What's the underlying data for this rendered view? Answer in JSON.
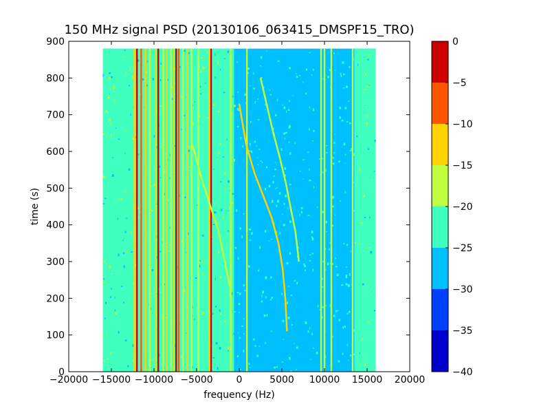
{
  "chart_data": {
    "type": "heatmap",
    "title": "150 MHz signal PSD (20130106_063415_DMSPF15_TRO)",
    "xlabel": "frequency (Hz)",
    "ylabel": "time (s)",
    "xlim": [
      -20000,
      20000
    ],
    "ylim": [
      0,
      900
    ],
    "xticks": [
      -20000,
      -15000,
      -10000,
      -5000,
      0,
      5000,
      10000,
      15000,
      20000
    ],
    "xtick_labels": [
      "−20000",
      "−15000",
      "−10000",
      "−5000",
      "0",
      "5000",
      "10000",
      "15000",
      "20000"
    ],
    "yticks": [
      0,
      100,
      200,
      300,
      400,
      500,
      600,
      700,
      800,
      900
    ],
    "ytick_labels": [
      "0",
      "100",
      "200",
      "300",
      "400",
      "500",
      "600",
      "700",
      "800",
      "900"
    ],
    "data_extent": {
      "x": [
        -16000,
        16000
      ],
      "y": [
        0,
        880
      ]
    },
    "colorbar": {
      "levels": [
        -40,
        -35,
        -30,
        -25,
        -20,
        -15,
        -10,
        -5,
        0
      ],
      "tick_labels": [
        "−40",
        "−35",
        "−30",
        "−25",
        "−20",
        "−15",
        "−10",
        "−5",
        "0"
      ],
      "colors": [
        "#0000cd",
        "#0040ff",
        "#00bfff",
        "#40ffbf",
        "#bfff40",
        "#ffd200",
        "#ff5500",
        "#cd0000"
      ]
    },
    "background_level": {
      "baseline_color": "#00bfff",
      "edge_color": "#40ffbf",
      "edge_ranges_hz": [
        [
          -16000,
          -600
        ],
        [
          13500,
          16000
        ]
      ]
    },
    "vertical_lines": [
      {
        "freq_hz": -12300,
        "level": -15
      },
      {
        "freq_hz": -12000,
        "level": -5
      },
      {
        "freq_hz": -11500,
        "level": -10
      },
      {
        "freq_hz": -11000,
        "level": -15
      },
      {
        "freq_hz": -10500,
        "level": -20
      },
      {
        "freq_hz": -9800,
        "level": -15
      },
      {
        "freq_hz": -9500,
        "level": -5
      },
      {
        "freq_hz": -8900,
        "level": -20
      },
      {
        "freq_hz": -8500,
        "level": -15
      },
      {
        "freq_hz": -8000,
        "level": -20
      },
      {
        "freq_hz": -7700,
        "level": -15
      },
      {
        "freq_hz": -7400,
        "level": -5
      },
      {
        "freq_hz": -7100,
        "level": -10
      },
      {
        "freq_hz": -6600,
        "level": -20
      },
      {
        "freq_hz": -6100,
        "level": -15
      },
      {
        "freq_hz": -5600,
        "level": -20
      },
      {
        "freq_hz": -4800,
        "level": -20
      },
      {
        "freq_hz": -3500,
        "level": -15
      },
      {
        "freq_hz": -3300,
        "level": -5
      },
      {
        "freq_hz": -1000,
        "level": -20
      },
      {
        "freq_hz": 900,
        "level": -20
      },
      {
        "freq_hz": 9600,
        "level": -20
      },
      {
        "freq_hz": 10000,
        "level": -20
      },
      {
        "freq_hz": 10800,
        "level": -20
      },
      {
        "freq_hz": 13300,
        "level": -20
      }
    ],
    "tracks": [
      {
        "level": -15,
        "points": [
          [
            5600,
            110
          ],
          [
            5400,
            200
          ],
          [
            5100,
            280
          ],
          [
            4600,
            350
          ],
          [
            3800,
            420
          ],
          [
            2800,
            480
          ],
          [
            1800,
            540
          ],
          [
            800,
            620
          ],
          [
            0,
            730
          ]
        ]
      },
      {
        "level": -20,
        "points": [
          [
            7000,
            300
          ],
          [
            6600,
            380
          ],
          [
            6000,
            450
          ],
          [
            5500,
            510
          ],
          [
            4800,
            580
          ],
          [
            4000,
            650
          ],
          [
            3300,
            720
          ],
          [
            2500,
            800
          ]
        ]
      },
      {
        "level": -20,
        "points": [
          [
            -1000,
            220
          ],
          [
            -1700,
            300
          ],
          [
            -2400,
            380
          ],
          [
            -3500,
            460
          ],
          [
            -4600,
            540
          ],
          [
            -5500,
            620
          ]
        ]
      }
    ]
  }
}
